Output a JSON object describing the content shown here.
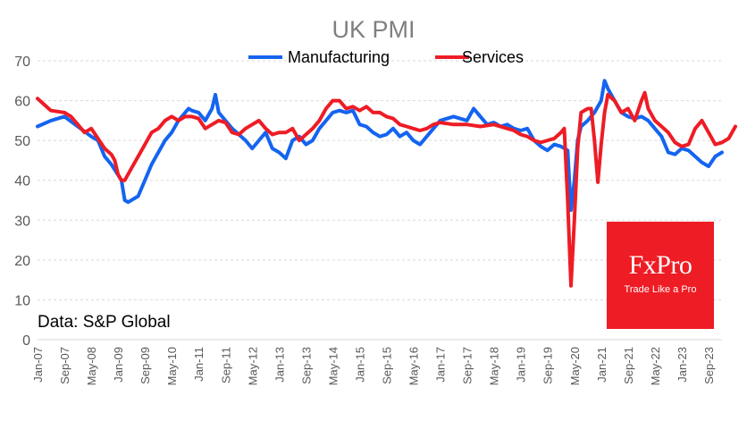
{
  "chart_data": {
    "type": "line",
    "title": "UK PMI",
    "xlabel": "",
    "ylabel": "",
    "ylim": [
      0,
      70
    ],
    "yticks": [
      0,
      10,
      20,
      30,
      40,
      50,
      60,
      70
    ],
    "grid": true,
    "legend_position": "top-center",
    "x_tick_labels": [
      "Jan-07",
      "Sep-07",
      "May-08",
      "Jan-09",
      "Sep-09",
      "May-10",
      "Jan-11",
      "Sep-11",
      "May-12",
      "Jan-13",
      "Sep-13",
      "May-14",
      "Jan-15",
      "Sep-15",
      "May-16",
      "Jan-17",
      "Sep-17",
      "May-18",
      "Jan-19",
      "Sep-19",
      "May-20",
      "Jan-21",
      "Sep-21",
      "May-22",
      "Jan-23",
      "Sep-23"
    ],
    "x_tick_interval_months": 8,
    "x_range": [
      "Jan-07",
      "Jan-24"
    ],
    "series": [
      {
        "name": "Manufacturing",
        "color": "#1464f0",
        "points": [
          [
            0,
            53.5
          ],
          [
            4,
            55
          ],
          [
            8,
            56
          ],
          [
            12,
            53.5
          ],
          [
            16,
            51
          ],
          [
            18,
            50
          ],
          [
            20,
            46
          ],
          [
            22,
            44
          ],
          [
            25,
            40
          ],
          [
            26,
            35
          ],
          [
            27,
            34.5
          ],
          [
            30,
            36
          ],
          [
            34,
            44
          ],
          [
            38,
            50
          ],
          [
            40,
            52
          ],
          [
            42,
            55
          ],
          [
            45,
            58
          ],
          [
            46,
            57.5
          ],
          [
            48,
            57
          ],
          [
            50,
            55
          ],
          [
            52,
            58
          ],
          [
            53,
            61.5
          ],
          [
            54,
            57
          ],
          [
            58,
            53
          ],
          [
            62,
            50
          ],
          [
            64,
            48
          ],
          [
            66,
            50
          ],
          [
            68,
            52
          ],
          [
            70,
            48
          ],
          [
            72,
            47
          ],
          [
            74,
            45.5
          ],
          [
            76,
            50
          ],
          [
            78,
            51
          ],
          [
            80,
            49
          ],
          [
            82,
            50
          ],
          [
            84,
            53
          ],
          [
            86,
            55
          ],
          [
            88,
            57
          ],
          [
            90,
            57.5
          ],
          [
            92,
            57
          ],
          [
            94,
            57.5
          ],
          [
            96,
            54
          ],
          [
            98,
            53.5
          ],
          [
            100,
            52
          ],
          [
            102,
            51
          ],
          [
            104,
            51.5
          ],
          [
            106,
            53
          ],
          [
            108,
            51
          ],
          [
            110,
            52
          ],
          [
            112,
            50
          ],
          [
            114,
            49
          ],
          [
            116,
            51
          ],
          [
            118,
            53
          ],
          [
            120,
            55
          ],
          [
            124,
            56
          ],
          [
            128,
            55
          ],
          [
            130,
            58
          ],
          [
            132,
            56
          ],
          [
            134,
            54
          ],
          [
            136,
            54.5
          ],
          [
            138,
            53.5
          ],
          [
            140,
            54
          ],
          [
            142,
            53
          ],
          [
            144,
            52.5
          ],
          [
            146,
            53
          ],
          [
            148,
            50
          ],
          [
            150,
            48.5
          ],
          [
            152,
            47.5
          ],
          [
            154,
            49
          ],
          [
            156,
            48.5
          ],
          [
            158,
            47.5
          ],
          [
            159,
            32.5
          ],
          [
            160,
            40
          ],
          [
            161,
            50
          ],
          [
            162,
            53.5
          ],
          [
            164,
            55
          ],
          [
            166,
            57
          ],
          [
            168,
            60
          ],
          [
            169,
            65
          ],
          [
            170,
            63
          ],
          [
            172,
            60
          ],
          [
            174,
            57
          ],
          [
            176,
            56
          ],
          [
            178,
            55.5
          ],
          [
            180,
            56
          ],
          [
            182,
            55
          ],
          [
            184,
            53
          ],
          [
            186,
            51
          ],
          [
            188,
            47
          ],
          [
            190,
            46.5
          ],
          [
            192,
            48
          ],
          [
            194,
            47.5
          ],
          [
            196,
            46
          ],
          [
            198,
            44.5
          ],
          [
            200,
            43.5
          ],
          [
            202,
            46
          ],
          [
            204,
            47
          ]
        ]
      },
      {
        "name": "Services",
        "color": "#ee1c25",
        "points": [
          [
            0,
            60.5
          ],
          [
            2,
            59
          ],
          [
            4,
            57.5
          ],
          [
            8,
            57
          ],
          [
            10,
            56
          ],
          [
            12,
            54
          ],
          [
            14,
            52
          ],
          [
            16,
            53
          ],
          [
            18,
            50.5
          ],
          [
            20,
            48
          ],
          [
            22,
            46.5
          ],
          [
            23,
            45
          ],
          [
            24,
            41.5
          ],
          [
            25,
            40
          ],
          [
            26,
            40
          ],
          [
            28,
            43
          ],
          [
            32,
            49
          ],
          [
            34,
            52
          ],
          [
            36,
            53
          ],
          [
            38,
            55
          ],
          [
            40,
            56
          ],
          [
            42,
            55
          ],
          [
            44,
            56
          ],
          [
            46,
            56
          ],
          [
            48,
            55.5
          ],
          [
            50,
            53
          ],
          [
            52,
            54
          ],
          [
            54,
            55
          ],
          [
            56,
            54.5
          ],
          [
            58,
            52
          ],
          [
            60,
            51.5
          ],
          [
            62,
            53
          ],
          [
            64,
            54
          ],
          [
            66,
            55
          ],
          [
            68,
            53
          ],
          [
            70,
            51.5
          ],
          [
            72,
            52
          ],
          [
            74,
            52
          ],
          [
            76,
            53
          ],
          [
            78,
            50
          ],
          [
            80,
            51.5
          ],
          [
            82,
            53
          ],
          [
            84,
            55
          ],
          [
            86,
            58
          ],
          [
            88,
            60
          ],
          [
            90,
            60
          ],
          [
            92,
            58
          ],
          [
            94,
            58.5
          ],
          [
            96,
            57.5
          ],
          [
            98,
            58.5
          ],
          [
            100,
            57
          ],
          [
            102,
            57
          ],
          [
            104,
            56
          ],
          [
            106,
            55.5
          ],
          [
            108,
            54
          ],
          [
            110,
            53.5
          ],
          [
            112,
            53
          ],
          [
            114,
            52.5
          ],
          [
            116,
            53
          ],
          [
            118,
            54
          ],
          [
            120,
            54.5
          ],
          [
            124,
            54
          ],
          [
            128,
            54
          ],
          [
            132,
            53.5
          ],
          [
            136,
            54
          ],
          [
            140,
            53
          ],
          [
            142,
            52.5
          ],
          [
            144,
            51.5
          ],
          [
            146,
            51
          ],
          [
            148,
            50
          ],
          [
            150,
            49.5
          ],
          [
            152,
            50
          ],
          [
            154,
            50.5
          ],
          [
            156,
            52
          ],
          [
            157,
            53
          ],
          [
            158,
            35
          ],
          [
            159,
            13.5
          ],
          [
            160,
            30
          ],
          [
            161,
            48
          ],
          [
            162,
            57
          ],
          [
            164,
            58
          ],
          [
            165,
            58
          ],
          [
            166,
            50
          ],
          [
            167,
            39.5
          ],
          [
            168,
            49
          ],
          [
            169,
            57
          ],
          [
            170,
            61.5
          ],
          [
            172,
            60
          ],
          [
            174,
            57
          ],
          [
            176,
            58
          ],
          [
            178,
            55
          ],
          [
            180,
            60
          ],
          [
            181,
            62
          ],
          [
            182,
            58
          ],
          [
            184,
            55
          ],
          [
            186,
            53.5
          ],
          [
            188,
            52
          ],
          [
            190,
            49.5
          ],
          [
            192,
            48.5
          ],
          [
            194,
            49
          ],
          [
            196,
            53
          ],
          [
            198,
            55
          ],
          [
            200,
            52
          ],
          [
            202,
            49
          ],
          [
            204,
            49.5
          ],
          [
            206,
            50.5
          ],
          [
            208,
            53.5
          ]
        ]
      }
    ]
  },
  "source_text": "Data: S&P Global",
  "logo": {
    "text": "FxPro",
    "tagline": "Trade Like a Pro",
    "background": "#ee1c25"
  }
}
